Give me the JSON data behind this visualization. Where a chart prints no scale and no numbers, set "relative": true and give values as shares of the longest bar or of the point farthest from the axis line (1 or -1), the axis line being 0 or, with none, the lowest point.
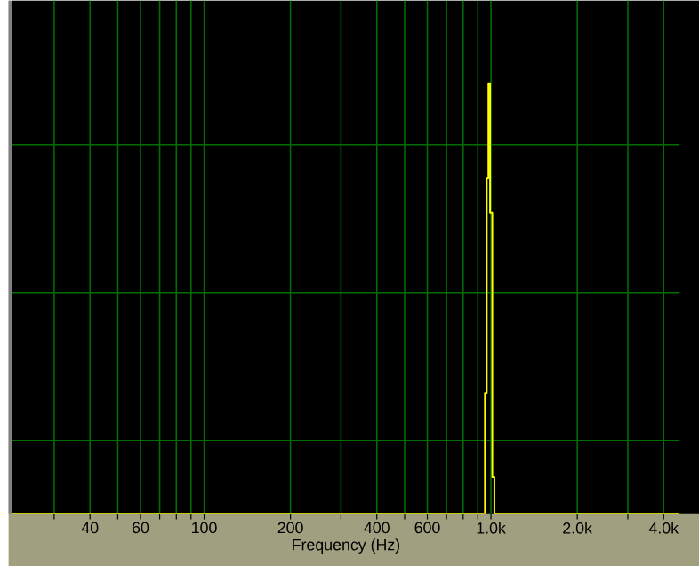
{
  "chart_data": {
    "type": "step",
    "xlabel": "Frequency (Hz)",
    "relative": true,
    "log": "x",
    "grid": true,
    "marker": "none",
    "line_style": "solid",
    "xlim": [
      21.4,
      4550
    ],
    "xticks": [
      {
        "value": 30,
        "label": null
      },
      40,
      {
        "value": 50,
        "label": null
      },
      60,
      {
        "value": 70,
        "label": null
      },
      {
        "value": 80,
        "label": null
      },
      {
        "value": 90,
        "label": null
      },
      100,
      200,
      {
        "value": 300,
        "label": null
      },
      400,
      {
        "value": 500,
        "label": null
      },
      600,
      {
        "value": 700,
        "label": null
      },
      {
        "value": 800,
        "label": null
      },
      {
        "value": 900,
        "label": null
      },
      {
        "value": 1000,
        "label": "1.0k"
      },
      {
        "value": 2000,
        "label": "2.0k"
      },
      {
        "value": 3000,
        "label": null
      },
      {
        "value": 4000,
        "label": "4.0k"
      }
    ],
    "series": [
      {
        "color": "#ffff00",
        "x": [
          21.4,
          953,
          967,
          980,
          993,
          1011,
          1028,
          4550
        ],
        "values": [
          0,
          0.28,
          0.78,
          1,
          0.7,
          0.086,
          0,
          0
        ]
      }
    ]
  }
}
